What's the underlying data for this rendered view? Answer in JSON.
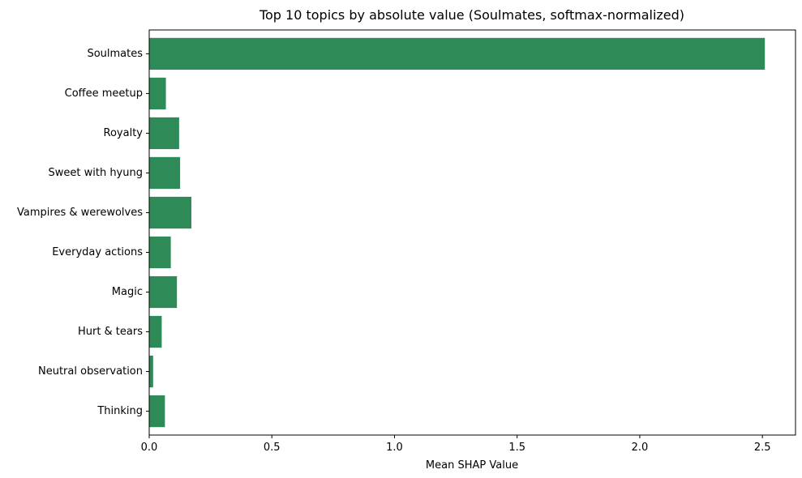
{
  "chart_data": {
    "type": "bar",
    "orientation": "horizontal",
    "title": "Top 10 topics by absolute value (Soulmates, softmax-normalized)",
    "xlabel": "Mean SHAP Value",
    "ylabel": "",
    "categories": [
      "Soulmates",
      "Coffee meetup",
      "Royalty",
      "Sweet with hyung",
      "Vampires & werewolves",
      "Everyday actions",
      "Magic",
      "Hurt & tears",
      "Neutral observation",
      "Thinking"
    ],
    "values": [
      2.51,
      0.068,
      0.122,
      0.126,
      0.172,
      0.088,
      0.113,
      0.051,
      0.016,
      0.064
    ],
    "xlim": [
      0,
      2.635
    ],
    "xticks": [
      0.0,
      0.5,
      1.0,
      1.5,
      2.0,
      2.5
    ],
    "xtick_labels": [
      "0.0",
      "0.5",
      "1.0",
      "1.5",
      "2.0",
      "2.5"
    ],
    "grid": false,
    "bar_color": "#2e8b57"
  }
}
